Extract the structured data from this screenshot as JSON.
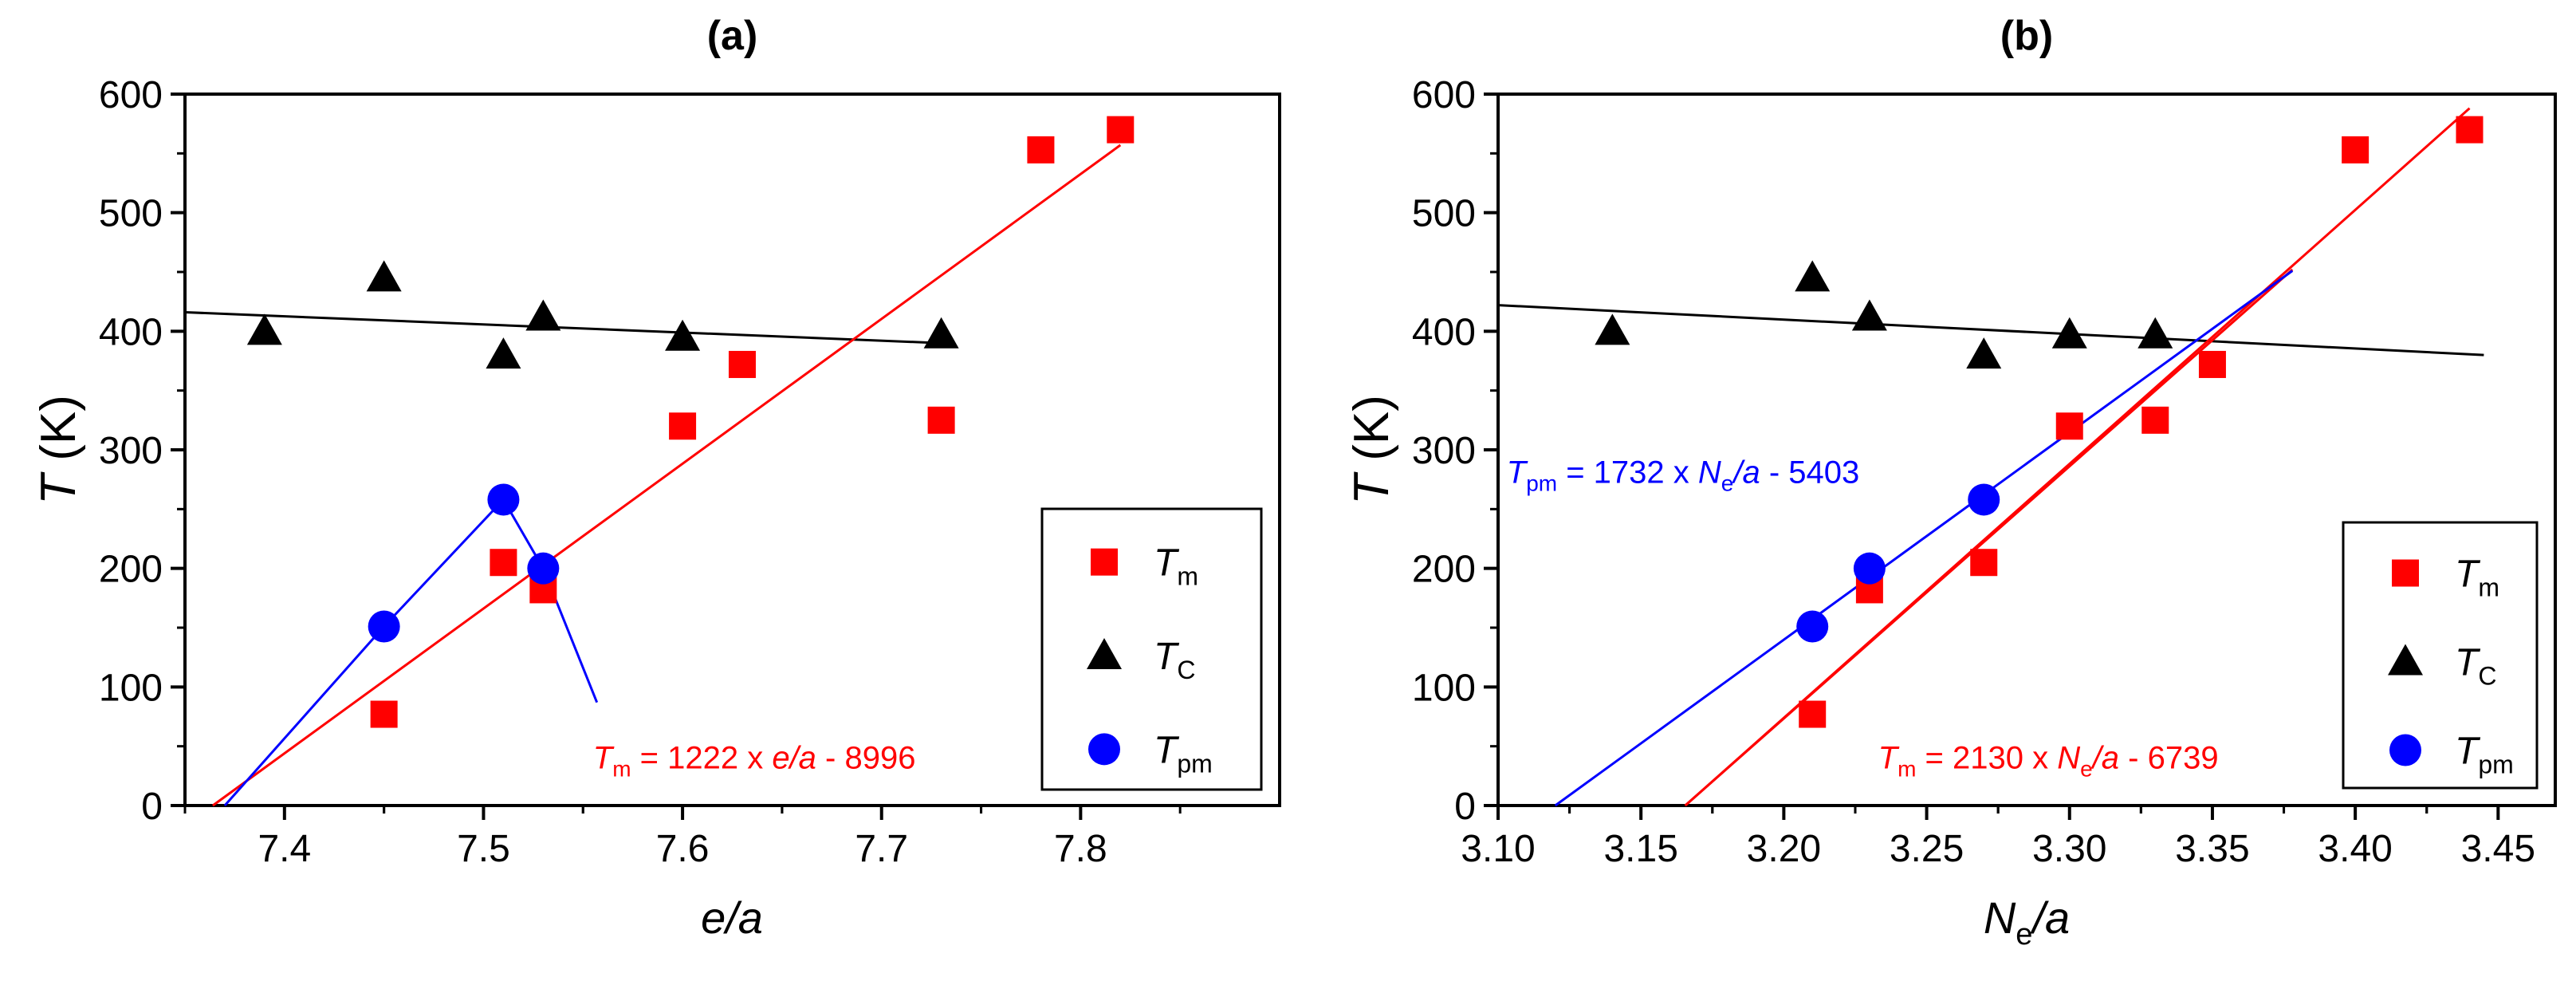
{
  "colors": {
    "tm": "#ff0000",
    "tc": "#000000",
    "tpm": "#0000ff",
    "frame": "#000000"
  },
  "chart_data": [
    {
      "panel_label": "(a)",
      "type": "scatter",
      "xlabel": "e/a",
      "ylabel_italic": "T",
      "ylabel_rest": " (K)",
      "xlim": [
        7.35,
        7.9
      ],
      "ylim": [
        0,
        600
      ],
      "xticks": [
        7.4,
        7.5,
        7.6,
        7.7,
        7.8
      ],
      "xtick_labels": [
        "7.4",
        "7.5",
        "7.6",
        "7.7",
        "7.8"
      ],
      "yticks": [
        0,
        100,
        200,
        300,
        400,
        500,
        600
      ],
      "ytick_labels": [
        "0",
        "100",
        "200",
        "300",
        "400",
        "500",
        "600"
      ],
      "legend_position": "bottom-right",
      "series": [
        {
          "key": "tm",
          "name_main": "T",
          "name_sub": "m",
          "marker": "square",
          "x": [
            7.45,
            7.51,
            7.53,
            7.6,
            7.63,
            7.73,
            7.78,
            7.82
          ],
          "y": [
            77,
            205,
            182,
            320,
            372,
            325,
            553,
            570
          ]
        },
        {
          "key": "tc",
          "name_main": "T",
          "name_sub": "C",
          "marker": "triangle",
          "x": [
            7.39,
            7.45,
            7.51,
            7.53,
            7.6,
            7.73
          ],
          "y": [
            400,
            445,
            380,
            412,
            395,
            397
          ]
        },
        {
          "key": "tpm",
          "name_main": "T",
          "name_sub": "pm",
          "marker": "circle",
          "x": [
            7.45,
            7.51,
            7.53
          ],
          "y": [
            151,
            258,
            200
          ]
        }
      ],
      "lines": [
        {
          "key": "tc",
          "points": [
            [
              7.35,
              416
            ],
            [
              7.73,
              390
            ]
          ]
        },
        {
          "key": "tm",
          "points": [
            [
              7.364,
              0
            ],
            [
              7.82,
              557
            ]
          ]
        },
        {
          "key": "tpm",
          "points": [
            [
              7.37,
              0
            ],
            [
              7.45,
              151
            ],
            [
              7.51,
              258
            ],
            [
              7.53,
              200
            ],
            [
              7.557,
              87
            ]
          ]
        }
      ],
      "annotations": [
        {
          "key": "tm",
          "main": "T",
          "sub": "m",
          "rest_plain": " = 1222 x ",
          "rest_italic": "e/a",
          "rest_end": " - 8996",
          "x": 7.555,
          "y": 42
        }
      ]
    },
    {
      "panel_label": "(b)",
      "type": "scatter",
      "xlabel_main": "N",
      "xlabel_sub": "e",
      "xlabel_rest": "/a",
      "ylabel_italic": "T",
      "ylabel_rest": " (K)",
      "xlim": [
        3.1,
        3.47
      ],
      "ylim": [
        0,
        600
      ],
      "xticks": [
        3.1,
        3.15,
        3.2,
        3.25,
        3.3,
        3.35,
        3.4,
        3.45
      ],
      "xtick_labels": [
        "3.10",
        "3.15",
        "3.20",
        "3.25",
        "3.30",
        "3.35",
        "3.40",
        "3.45"
      ],
      "yticks": [
        0,
        100,
        200,
        300,
        400,
        500,
        600
      ],
      "ytick_labels": [
        "0",
        "100",
        "200",
        "300",
        "400",
        "500",
        "600"
      ],
      "legend_position": "bottom-right",
      "series": [
        {
          "key": "tm",
          "name_main": "T",
          "name_sub": "m",
          "marker": "square",
          "x": [
            3.21,
            3.23,
            3.27,
            3.3,
            3.33,
            3.35,
            3.4,
            3.44
          ],
          "y": [
            77,
            182,
            205,
            320,
            325,
            372,
            553,
            570
          ]
        },
        {
          "key": "tc",
          "name_main": "T",
          "name_sub": "C",
          "marker": "triangle",
          "x": [
            3.14,
            3.21,
            3.23,
            3.27,
            3.3,
            3.33
          ],
          "y": [
            400,
            445,
            412,
            380,
            397,
            397
          ]
        },
        {
          "key": "tpm",
          "name_main": "T",
          "name_sub": "pm",
          "marker": "circle",
          "x": [
            3.21,
            3.23,
            3.27
          ],
          "y": [
            151,
            200,
            258
          ]
        }
      ],
      "lines": [
        {
          "key": "tc",
          "points": [
            [
              3.1,
              422
            ],
            [
              3.445,
              380
            ]
          ]
        },
        {
          "key": "tm",
          "points": [
            [
              3.1655,
              0
            ],
            [
              3.44,
              588
            ]
          ]
        },
        {
          "key": "tm",
          "points": [
            [
              3.1655,
              0
            ],
            [
              3.378,
              452
            ]
          ]
        },
        {
          "key": "tpm",
          "points": [
            [
              3.12,
              0
            ],
            [
              3.378,
              451
            ]
          ]
        }
      ],
      "annotations": [
        {
          "key": "tpm",
          "main": "T",
          "sub": "pm",
          "rest_plain": " = 1732 x ",
          "rest_italic_main": "N",
          "rest_italic_sub": "e",
          "rest_italic_tail": "/a",
          "rest_end": " - 5403",
          "x": 3.103,
          "y": 283
        },
        {
          "key": "tm",
          "main": "T",
          "sub": "m",
          "rest_plain": " = 2130 x ",
          "rest_italic_main": "N",
          "rest_italic_sub": "e",
          "rest_italic_tail": "/a",
          "rest_end": " - 6739",
          "x": 3.233,
          "y": 42
        }
      ]
    }
  ]
}
